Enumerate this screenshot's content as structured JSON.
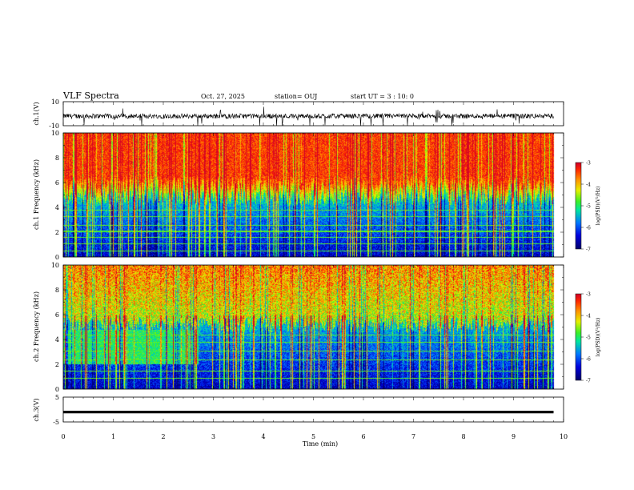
{
  "header": {
    "title": "VLF Spectra",
    "date": "Oct. 27, 2025",
    "station": "station= OUJ",
    "start_ut": "start UT = 3 : 10: 0"
  },
  "colors": {
    "spectrum_low": "#0000c8",
    "spectrum_mid": "#00e060",
    "spectrum_high": "#ff2a00",
    "trace": "#000000"
  },
  "chart_data": [
    {
      "type": "line",
      "panel": "waveform-ch1",
      "ylabel": "ch.1(V)",
      "ylim": [
        -10,
        10
      ],
      "yticks": [
        "10",
        "-10"
      ],
      "xlim": [
        0,
        10
      ],
      "series": [
        {
          "baseline": -2,
          "noise_amplitude": 4,
          "spike_amplitude": 12
        }
      ]
    },
    {
      "type": "heatmap",
      "panel": "spectrogram-ch1",
      "ylabel": "ch.1 Frequency (kHz)",
      "ylim": [
        0,
        10
      ],
      "yticks": [
        "0",
        "2",
        "4",
        "6",
        "8",
        "10"
      ],
      "xlim": [
        0,
        10
      ],
      "data_end_min": 9.8,
      "colorbar": {
        "label": "log(PSD)(V²/Hz)",
        "range": [
          -7,
          -3
        ],
        "ticks": [
          "-3",
          "-4",
          "-5",
          "-6",
          "-7"
        ]
      },
      "features": {
        "low_band_kHz": [
          0,
          4
        ],
        "transition_kHz": [
          4,
          6
        ],
        "high_band_kHz": [
          6,
          10
        ],
        "tone_lines_kHz": [
          0.5,
          1.1,
          1.6,
          2.1,
          2.6,
          3.3,
          3.8
        ]
      }
    },
    {
      "type": "heatmap",
      "panel": "spectrogram-ch2",
      "ylabel": "ch.2 Frequency (kHz)",
      "ylim": [
        0,
        10
      ],
      "yticks": [
        "0",
        "2",
        "4",
        "6",
        "8",
        "10"
      ],
      "xlim": [
        0,
        10
      ],
      "data_end_min": 9.8,
      "colorbar": {
        "label": "log(PSD)(V²/Hz)",
        "range": [
          -7,
          -3
        ],
        "ticks": [
          "-3",
          "-4",
          "-5",
          "-6",
          "-7"
        ]
      },
      "features": {
        "early_band_until_min": 2.7,
        "early_band_kHz": [
          2,
          4.8
        ],
        "tone_lines_kHz": [
          0.9,
          1.5,
          2.4,
          3.1,
          3.8,
          4.4
        ]
      }
    },
    {
      "type": "line",
      "panel": "waveform-ch3",
      "ylabel": "ch.3(V)",
      "ylim": [
        -5,
        5
      ],
      "yticks": [
        "5",
        "-5"
      ],
      "xlim": [
        0,
        10
      ],
      "xlabel": "Time (min)",
      "xticks": [
        "0",
        "1",
        "2",
        "3",
        "4",
        "5",
        "6",
        "7",
        "8",
        "9",
        "10"
      ],
      "series": [
        {
          "constant_value": -1,
          "start": 0,
          "end": 9.8
        }
      ]
    }
  ]
}
